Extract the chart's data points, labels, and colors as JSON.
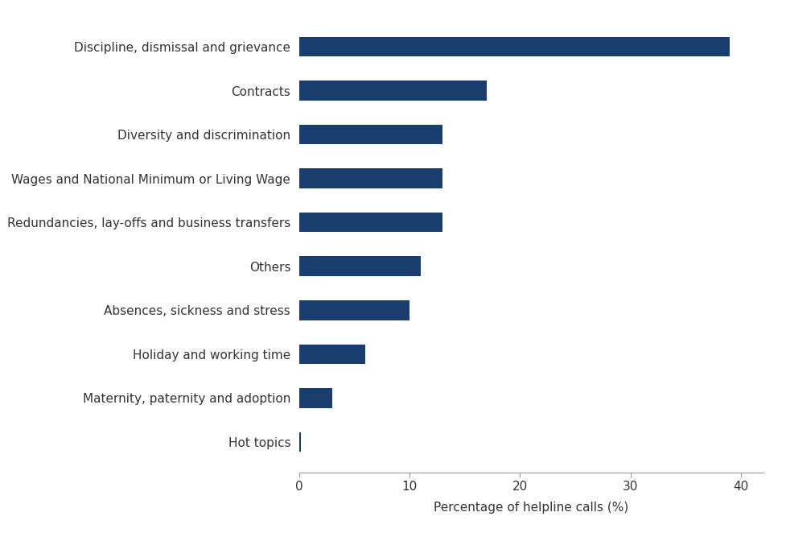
{
  "categories": [
    "Hot topics",
    "Maternity, paternity and adoption",
    "Holiday and working time",
    "Absences, sickness and stress",
    "Others",
    "Redundancies, lay-offs and business transfers",
    "Wages and National Minimum or Living Wage",
    "Diversity and discrimination",
    "Contracts",
    "Discipline, dismissal and grievance"
  ],
  "values": [
    0.15,
    3.0,
    6.0,
    10.0,
    11.0,
    13.0,
    13.0,
    13.0,
    17.0,
    39.0
  ],
  "bar_color": "#1a3f6f",
  "xlabel": "Percentage of helpline calls (%)",
  "xlim": [
    0,
    42
  ],
  "xticks": [
    0,
    10,
    20,
    30,
    40
  ],
  "background_color": "#ffffff",
  "bar_height": 0.45,
  "label_fontsize": 11,
  "xlabel_fontsize": 11,
  "tick_fontsize": 11
}
